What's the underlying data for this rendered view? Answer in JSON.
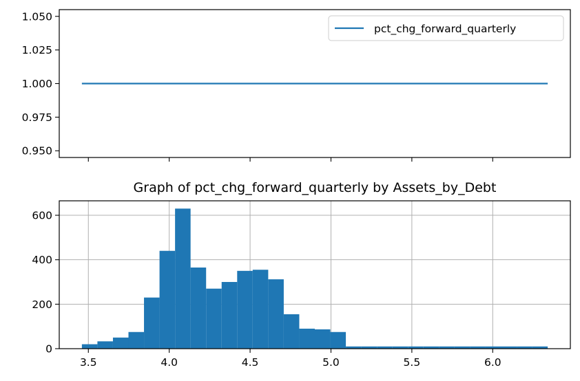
{
  "chart_data": [
    {
      "type": "line",
      "legend": {
        "placement": "top-right",
        "label": "pct_chg_forward_quarterly"
      },
      "series": [
        {
          "name": "pct_chg_forward_quarterly",
          "x": [
            3.46,
            6.34
          ],
          "y": [
            1.0,
            1.0
          ]
        }
      ],
      "xlim": [
        3.32,
        6.48
      ],
      "ylim": [
        0.945,
        1.055
      ],
      "yticks": [
        0.95,
        0.975,
        1.0,
        1.025,
        1.05
      ],
      "ytick_labels": [
        "0.950",
        "0.975",
        "1.000",
        "1.025",
        "1.050"
      ],
      "xticks": [
        3.5,
        4.0,
        4.5,
        5.0,
        5.5,
        6.0
      ],
      "xtick_labels_shown": false,
      "grid": false,
      "color": "#1f77b4"
    },
    {
      "type": "bar",
      "title": "Graph of pct_chg_forward_quarterly by Assets_by_Debt",
      "bin_edges": [
        3.46,
        3.556,
        3.652,
        3.748,
        3.844,
        3.94,
        4.036,
        4.132,
        4.228,
        4.324,
        4.42,
        4.516,
        4.612,
        4.708,
        4.804,
        4.9,
        4.996,
        5.092,
        5.188,
        5.284,
        5.38,
        5.476,
        5.572,
        5.668,
        5.764,
        5.86,
        5.956,
        6.052,
        6.148,
        6.244,
        6.34
      ],
      "values": [
        20,
        33,
        50,
        75,
        230,
        440,
        630,
        365,
        270,
        300,
        350,
        355,
        312,
        155,
        90,
        87,
        75,
        10,
        10,
        10,
        10,
        10,
        10,
        10,
        10,
        10,
        10,
        10,
        10,
        10
      ],
      "xlim": [
        3.32,
        6.48
      ],
      "ylim": [
        0,
        665
      ],
      "xticks": [
        3.5,
        4.0,
        4.5,
        5.0,
        5.5,
        6.0
      ],
      "xtick_labels": [
        "3.5",
        "4.0",
        "4.5",
        "5.0",
        "5.5",
        "6.0"
      ],
      "yticks": [
        0,
        200,
        400,
        600
      ],
      "ytick_labels": [
        "0",
        "200",
        "400",
        "600"
      ],
      "grid": true,
      "color": "#1f77b4"
    }
  ]
}
